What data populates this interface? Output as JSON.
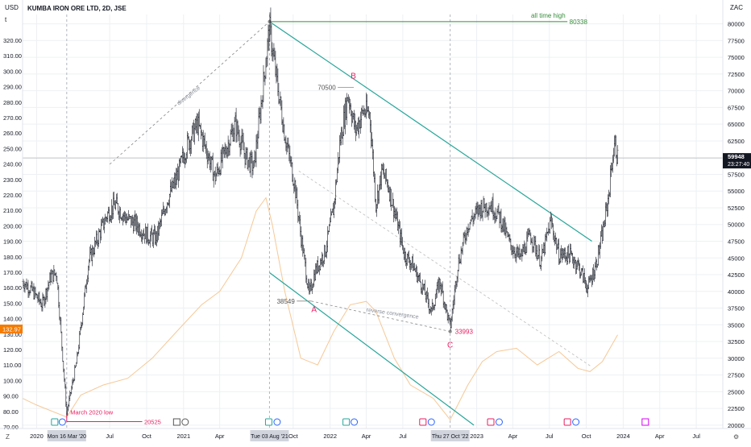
{
  "header": {
    "symbol_title": "KUMBA IRON ORE LTD, 2D, JSE",
    "left_currency": "USD",
    "right_currency": "ZAC",
    "corner_t": "t"
  },
  "colors": {
    "candle": "#131722",
    "overlay": "#f6c896",
    "trend_teal": "#26a69a",
    "high_line": "#388e3c",
    "red_label": "#e91e63",
    "price_badge": "#131722",
    "usd_badge": "#f57c00",
    "grid": "#eef0f3"
  },
  "chart_data": {
    "type": "candlestick",
    "title": "KUMBA IRON ORE LTD, 2D, JSE",
    "x_range": [
      "2019-11-27",
      "2024-09-05"
    ],
    "right_axis": {
      "unit": "ZAC",
      "range": [
        19500,
        81400
      ],
      "ticks": [
        20000,
        22500,
        25000,
        27500,
        30000,
        32500,
        35000,
        37500,
        40000,
        42500,
        45000,
        47500,
        50000,
        52500,
        55000,
        57500,
        60000,
        62500,
        65000,
        67500,
        70000,
        72500,
        75000,
        77500,
        80000
      ]
    },
    "left_axis": {
      "unit": "USD",
      "ticks": [
        "70.00",
        "80.00",
        "90.00",
        "100.00",
        "110.00",
        "120.00",
        "130.00",
        "140.00",
        "150.00",
        "160.00",
        "170.00",
        "180.00",
        "190.00",
        "200.00",
        "210.00",
        "220.00",
        "230.00",
        "240.00",
        "250.00",
        "260.00",
        "270.00",
        "280.00",
        "290.00",
        "300.00",
        "310.00",
        "320.00"
      ]
    },
    "x_ticks": [
      "2020",
      "Jul",
      "Oct",
      "2021",
      "Apr",
      "Oct",
      "2022",
      "Apr",
      "Jul",
      "2023",
      "Apr",
      "Jul",
      "Oct",
      "2024",
      "Apr",
      "Jul"
    ],
    "x_tick_dates": [
      "2020-01-01",
      "2020-07-01",
      "2020-10-01",
      "2021-01-01",
      "2021-04-01",
      "2021-10-01",
      "2022-01-01",
      "2022-04-01",
      "2022-07-01",
      "2023-01-01",
      "2023-04-01",
      "2023-07-01",
      "2023-10-01",
      "2024-01-01",
      "2024-04-01",
      "2024-07-01"
    ],
    "highlighted_dates": [
      {
        "label": "Mon 16 Mar '20",
        "date": "2020-03-16"
      },
      {
        "label": "Tue 03 Aug '21",
        "date": "2021-08-03"
      },
      {
        "label": "Thu 27 Oct '22",
        "date": "2022-10-27"
      }
    ],
    "series": [
      {
        "style": "candles",
        "points": [
          [
            "2019-11-27",
            41500
          ],
          [
            "2019-12-20",
            40200
          ],
          [
            "2020-01-15",
            38000
          ],
          [
            "2020-02-05",
            42200
          ],
          [
            "2020-02-20",
            42800
          ],
          [
            "2020-03-16",
            21800
          ],
          [
            "2020-04-10",
            29500
          ],
          [
            "2020-05-10",
            44500
          ],
          [
            "2020-06-05",
            48500
          ],
          [
            "2020-06-25",
            51500
          ],
          [
            "2020-07-15",
            53000
          ],
          [
            "2020-08-10",
            51000
          ],
          [
            "2020-09-05",
            50000
          ],
          [
            "2020-10-05",
            48200
          ],
          [
            "2020-10-25",
            48000
          ],
          [
            "2020-11-20",
            53500
          ],
          [
            "2020-12-15",
            57000
          ],
          [
            "2021-01-10",
            62000
          ],
          [
            "2021-02-05",
            65000
          ],
          [
            "2021-03-05",
            60000
          ],
          [
            "2021-03-20",
            57000
          ],
          [
            "2021-04-15",
            61000
          ],
          [
            "2021-05-10",
            65000
          ],
          [
            "2021-06-05",
            60000
          ],
          [
            "2021-06-25",
            58500
          ],
          [
            "2021-07-15",
            69000
          ],
          [
            "2021-08-03",
            79500
          ],
          [
            "2021-08-20",
            72000
          ],
          [
            "2021-09-10",
            63500
          ],
          [
            "2021-10-05",
            56000
          ],
          [
            "2021-10-20",
            48500
          ],
          [
            "2021-11-10",
            39500
          ],
          [
            "2021-11-25",
            43000
          ],
          [
            "2021-12-20",
            46000
          ],
          [
            "2022-01-10",
            52500
          ],
          [
            "2022-01-25",
            62000
          ],
          [
            "2022-02-15",
            69500
          ],
          [
            "2022-03-05",
            64000
          ],
          [
            "2022-03-25",
            67000
          ],
          [
            "2022-04-10",
            66500
          ],
          [
            "2022-04-25",
            53000
          ],
          [
            "2022-05-10",
            58000
          ],
          [
            "2022-05-25",
            56000
          ],
          [
            "2022-06-10",
            52000
          ],
          [
            "2022-07-05",
            45500
          ],
          [
            "2022-07-25",
            44000
          ],
          [
            "2022-08-20",
            40500
          ],
          [
            "2022-09-10",
            37000
          ],
          [
            "2022-10-01",
            41500
          ],
          [
            "2022-10-27",
            34500
          ],
          [
            "2022-11-15",
            44000
          ],
          [
            "2022-12-10",
            50000
          ],
          [
            "2023-01-10",
            52500
          ],
          [
            "2023-02-05",
            53000
          ],
          [
            "2023-03-01",
            51000
          ],
          [
            "2023-03-25",
            47000
          ],
          [
            "2023-04-20",
            45000
          ],
          [
            "2023-05-15",
            48500
          ],
          [
            "2023-06-10",
            44500
          ],
          [
            "2023-07-05",
            50500
          ],
          [
            "2023-07-25",
            45500
          ],
          [
            "2023-08-20",
            45500
          ],
          [
            "2023-09-10",
            44000
          ],
          [
            "2023-10-05",
            40500
          ],
          [
            "2023-10-25",
            44000
          ],
          [
            "2023-11-10",
            48500
          ],
          [
            "2023-11-25",
            54000
          ],
          [
            "2023-12-05",
            60000
          ],
          [
            "2023-12-12",
            62000
          ],
          [
            "2023-12-18",
            59948
          ]
        ]
      },
      {
        "style": "overlay-line",
        "points": [
          [
            "2019-11-27",
            24000
          ],
          [
            "2020-01-01",
            23000
          ],
          [
            "2020-03-16",
            21200
          ],
          [
            "2020-04-20",
            24500
          ],
          [
            "2020-06-15",
            26000
          ],
          [
            "2020-08-15",
            27000
          ],
          [
            "2020-10-15",
            30000
          ],
          [
            "2020-12-15",
            34000
          ],
          [
            "2021-02-15",
            38000
          ],
          [
            "2021-04-01",
            40000
          ],
          [
            "2021-05-25",
            45000
          ],
          [
            "2021-07-01",
            52000
          ],
          [
            "2021-07-25",
            54000
          ],
          [
            "2021-08-10",
            50000
          ],
          [
            "2021-09-10",
            40000
          ],
          [
            "2021-10-20",
            30000
          ],
          [
            "2021-12-01",
            29000
          ],
          [
            "2022-01-10",
            34000
          ],
          [
            "2022-02-20",
            38000
          ],
          [
            "2022-04-01",
            38500
          ],
          [
            "2022-04-25",
            37000
          ],
          [
            "2022-06-10",
            30000
          ],
          [
            "2022-07-20",
            26000
          ],
          [
            "2022-09-15",
            24000
          ],
          [
            "2022-10-27",
            20800
          ],
          [
            "2022-12-10",
            26000
          ],
          [
            "2023-01-15",
            29500
          ],
          [
            "2023-02-20",
            31000
          ],
          [
            "2023-04-10",
            31500
          ],
          [
            "2023-06-01",
            29000
          ],
          [
            "2023-07-25",
            31000
          ],
          [
            "2023-09-10",
            28500
          ],
          [
            "2023-10-10",
            28000
          ],
          [
            "2023-11-10",
            29500
          ],
          [
            "2023-12-18",
            33500
          ]
        ]
      }
    ],
    "drawings": [
      {
        "label": "all time high",
        "value": 80338
      },
      {
        "label": "divergence"
      },
      {
        "label": "reverse convergence"
      },
      {
        "label": "B",
        "value": 70500
      },
      {
        "label": "A",
        "value": 38549
      },
      {
        "label": "C",
        "value": 33993
      },
      {
        "label": "March 2020 low",
        "value": 20525
      }
    ],
    "last_price": "59948",
    "countdown": "23:27:40",
    "usd_price": "132.97",
    "grid": true
  }
}
